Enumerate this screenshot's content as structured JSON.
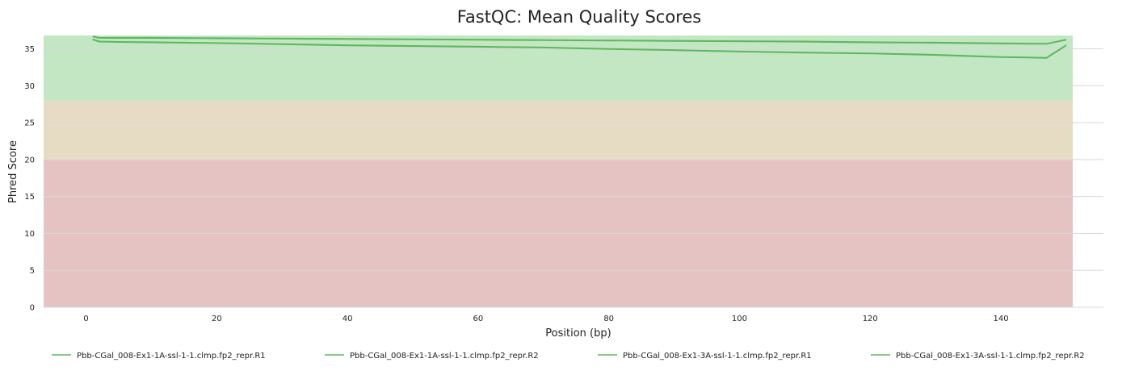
{
  "chart_data": {
    "type": "line",
    "title": "FastQC: Mean Quality Scores",
    "xlabel": "Position (bp)",
    "ylabel": "Phred Score",
    "xlim": [
      -6.5,
      151
    ],
    "ylim": [
      0,
      36.8
    ],
    "xticks": [
      0,
      20,
      40,
      60,
      80,
      100,
      120,
      140
    ],
    "yticks": [
      0,
      5,
      10,
      15,
      20,
      25,
      30,
      35
    ],
    "grid": "horizontal",
    "legend_position": "bottom",
    "bands": [
      {
        "from": 28,
        "to": 36.8,
        "color": "#c3e6c3"
      },
      {
        "from": 20,
        "to": 28,
        "color": "#e6dcc3"
      },
      {
        "from": 0,
        "to": 20,
        "color": "#e6c3c3"
      }
    ],
    "series_color": "#5cb85c",
    "series": [
      {
        "name": "Pbb-CGal_008-Ex1-1A-ssl-1-1.clmp.fp2_repr.R1",
        "x": [
          1,
          2,
          5,
          10,
          20,
          30,
          40,
          50,
          60,
          70,
          80,
          90,
          100,
          110,
          120,
          130,
          140,
          147,
          150
        ],
        "y": [
          36.7,
          36.5,
          36.5,
          36.5,
          36.45,
          36.4,
          36.35,
          36.3,
          36.25,
          36.2,
          36.15,
          36.1,
          36.05,
          36.0,
          35.9,
          35.85,
          35.75,
          35.7,
          36.25
        ]
      },
      {
        "name": "Pbb-CGal_008-Ex1-1A-ssl-1-1.clmp.fp2_repr.R2",
        "x": [
          1,
          2,
          5,
          10,
          20,
          30,
          40,
          50,
          60,
          70,
          80,
          90,
          100,
          110,
          120,
          130,
          140,
          147,
          150
        ],
        "y": [
          36.3,
          36.0,
          35.95,
          35.9,
          35.8,
          35.65,
          35.5,
          35.4,
          35.3,
          35.2,
          35.0,
          34.85,
          34.65,
          34.5,
          34.4,
          34.2,
          33.9,
          33.8,
          35.5
        ]
      },
      {
        "name": "Pbb-CGal_008-Ex1-3A-ssl-1-1.clmp.fp2_repr.R1",
        "x": [
          1,
          2,
          5,
          10,
          20,
          30,
          40,
          50,
          60,
          70,
          80,
          90,
          100,
          110,
          120,
          130,
          140,
          147,
          150
        ],
        "y": [
          36.65,
          36.45,
          36.45,
          36.45,
          36.4,
          36.35,
          36.3,
          36.25,
          36.2,
          36.15,
          36.1,
          36.05,
          36.0,
          35.95,
          35.85,
          35.8,
          35.7,
          35.65,
          36.2
        ]
      },
      {
        "name": "Pbb-CGal_008-Ex1-3A-ssl-1-1.clmp.fp2_repr.R2",
        "x": [
          1,
          2,
          5,
          10,
          20,
          30,
          40,
          50,
          60,
          70,
          80,
          90,
          100,
          110,
          120,
          130,
          140,
          147,
          150
        ],
        "y": [
          36.25,
          35.95,
          35.9,
          35.85,
          35.75,
          35.6,
          35.45,
          35.35,
          35.25,
          35.15,
          34.95,
          34.8,
          34.6,
          34.45,
          34.35,
          34.15,
          33.85,
          33.75,
          35.45
        ]
      }
    ]
  }
}
